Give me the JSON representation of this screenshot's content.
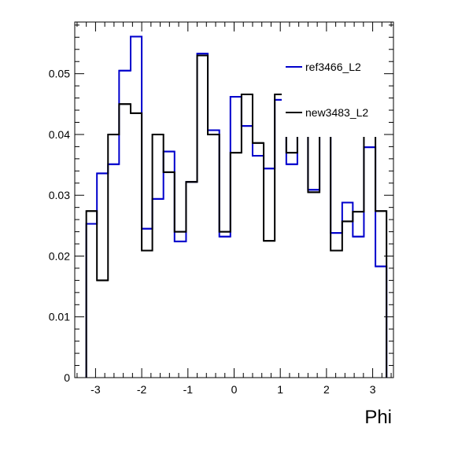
{
  "chart_data": {
    "type": "histogram",
    "title": "",
    "xlabel": "Phi",
    "ylabel": "",
    "xlim": [
      -3.45,
      3.45
    ],
    "ylim": [
      0,
      0.0585
    ],
    "x_ticks": [
      -3,
      -2,
      -1,
      0,
      1,
      2,
      3
    ],
    "y_ticks": [
      0,
      0.01,
      0.02,
      0.03,
      0.04,
      0.05
    ],
    "y_tick_labels": [
      "0",
      "0.01",
      "0.02",
      "0.03",
      "0.04",
      "0.05"
    ],
    "bin_edges": [
      -3.2,
      -2.97,
      -2.73,
      -2.49,
      -2.24,
      -2.0,
      -1.77,
      -1.53,
      -1.29,
      -1.04,
      -0.8,
      -0.57,
      -0.32,
      -0.08,
      0.16,
      0.4,
      0.64,
      0.88,
      1.13,
      1.37,
      1.6,
      1.85,
      2.09,
      2.34,
      2.57,
      2.81,
      3.06,
      3.3
    ],
    "grid": false,
    "legend_position": "top-right",
    "series": [
      {
        "name": "ref3466_L2",
        "color": "#0000cc",
        "values": [
          0.0253,
          0.0336,
          0.0351,
          0.0505,
          0.0561,
          0.0245,
          0.0294,
          0.0372,
          0.0224,
          0.0322,
          0.0533,
          0.0407,
          0.0232,
          0.0462,
          0.0414,
          0.0365,
          0.0344,
          0.0457,
          0.0351,
          0.04,
          0.0309,
          0.04,
          0.0238,
          0.0288,
          0.0232,
          0.0379,
          0.0183
        ]
      },
      {
        "name": "new3483_L2",
        "color": "#000000",
        "values": [
          0.0274,
          0.016,
          0.04,
          0.045,
          0.0435,
          0.0209,
          0.04,
          0.0338,
          0.024,
          0.0322,
          0.053,
          0.04,
          0.024,
          0.037,
          0.0466,
          0.0386,
          0.0225,
          0.0466,
          0.037,
          0.04,
          0.0305,
          0.04,
          0.0209,
          0.0257,
          0.0273,
          0.04,
          0.0274
        ]
      }
    ]
  }
}
